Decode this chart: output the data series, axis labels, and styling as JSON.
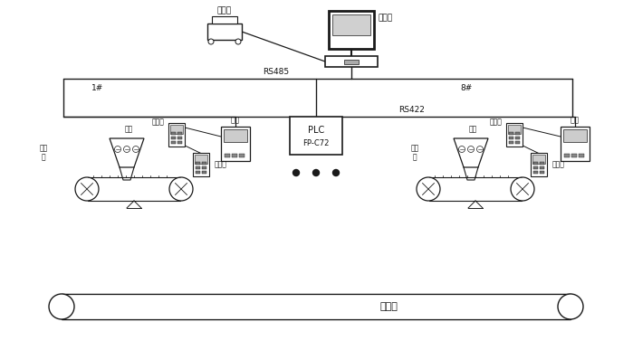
{
  "bg_color": "#ffffff",
  "line_color": "#1a1a1a",
  "labels": {
    "printer": "打印机",
    "ipc": "工控机",
    "rs485": "RS485",
    "rs422": "RS422",
    "plc": "PLC",
    "plc_model": "FP-C72",
    "no1": "1#",
    "no8": "8#",
    "yibiao": "仪表",
    "bianpinqi": "变频器",
    "liancang": "料仓",
    "geiliaoji": "给料\n机",
    "yibiao8": "仪表",
    "bianpinqi8": "变频器",
    "liancang8": "料仓",
    "geiliaoji8": "给料\n机",
    "main_belt": "主皮带"
  }
}
